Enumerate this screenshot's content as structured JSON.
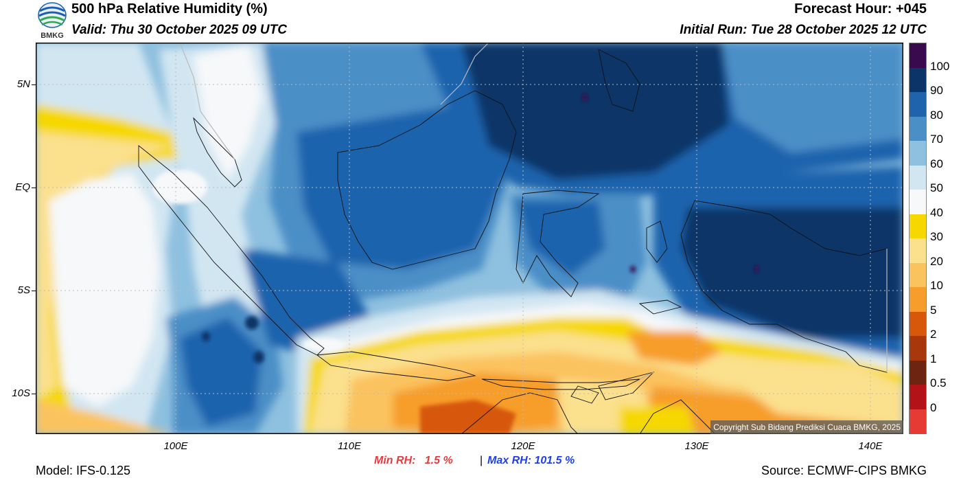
{
  "header": {
    "title": "500 hPa Relative Humidity (%)",
    "valid": "Valid: Thu 30 October 2025 09 UTC",
    "forecast_hour": "Forecast Hour: +045",
    "initial_run": "Initial Run: Tue 28 October 2025 12 UTC",
    "logo_text": "BMKG"
  },
  "footer": {
    "model": "Model: IFS-0.125",
    "source": "Source: ECMWF-CIPS BMKG",
    "min_rh": "Min RH:   1.5 %",
    "separator": "|",
    "max_rh": "Max RH: 101.5 %",
    "min_color": "#e8393d",
    "max_color": "#1f3fe8"
  },
  "map": {
    "copyright": "Copyright Sub Bidang Prediksi Cuaca BMKG, 2025",
    "lat_labels": [
      "5N",
      "EQ",
      "5S",
      "10S"
    ],
    "lon_labels": [
      "100E",
      "110E",
      "120E",
      "130E",
      "140E"
    ]
  },
  "colorbar": {
    "labels": [
      "100",
      "90",
      "80",
      "70",
      "60",
      "50",
      "40",
      "30",
      "20",
      "10",
      "5",
      "2",
      "1",
      "0.5",
      "0"
    ],
    "colors": [
      "#3a0a4e",
      "#0b3468",
      "#1f63ad",
      "#4b8fc7",
      "#8ec0df",
      "#d2e6f2",
      "#f6f8fa",
      "#f6d800",
      "#fbe08d",
      "#fbc35e",
      "#f79d2c",
      "#d7580a",
      "#a8380c",
      "#6d2410",
      "#b31218",
      "#e63a34"
    ]
  }
}
